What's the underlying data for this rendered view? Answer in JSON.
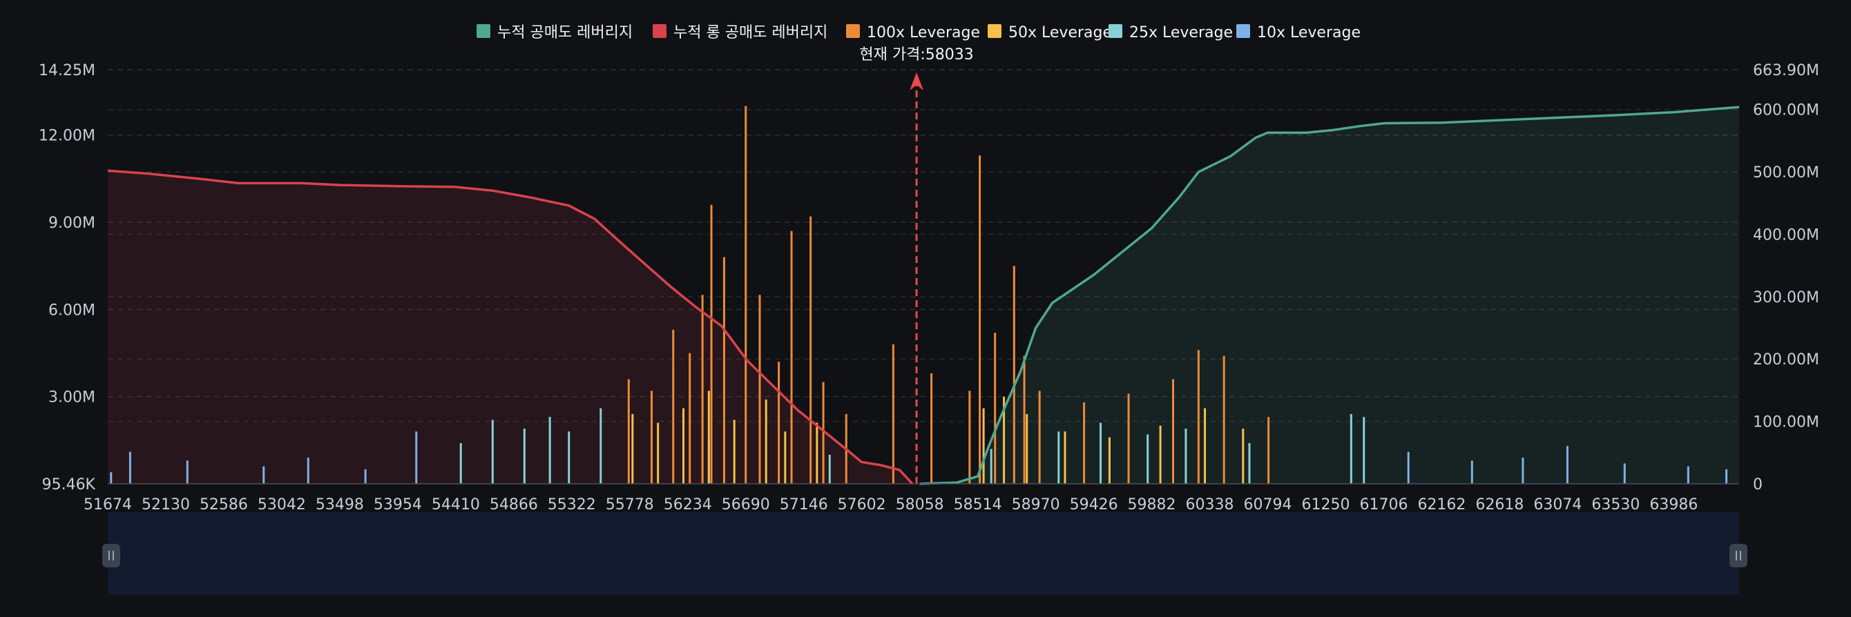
{
  "colors": {
    "background": "#0f1115",
    "grid": "#2b2f36",
    "axis_text": "#c9ced6",
    "cumulative_short": "#4fa88f",
    "cumulative_long": "#d9434d",
    "lev100": "#ee8a37",
    "lev50": "#f4c04b",
    "lev25": "#86d2d8",
    "lev10": "#7fb2e6",
    "marker": "#e64a4a",
    "zoom_bg": "#141b2e",
    "zoom_handle": "#3b4250"
  },
  "chart_data": {
    "type": "bar",
    "legend_position": "top-center",
    "grid": true,
    "series": [
      {
        "name": "누적 공매도 레버리지",
        "type": "area"
      },
      {
        "name": "누적 롱 공매도 레버리지",
        "type": "area"
      },
      {
        "name": "100x Leverage",
        "type": "bar"
      },
      {
        "name": "50x Leverage",
        "type": "bar"
      },
      {
        "name": "25x Leverage",
        "type": "bar"
      },
      {
        "name": "10x Leverage",
        "type": "bar"
      }
    ],
    "current_price_label": "현재 가격:58033",
    "current_price": 58033,
    "x_range": [
      51674,
      64500
    ],
    "x_tick_labels": [
      "51674",
      "52130",
      "52586",
      "53042",
      "53498",
      "53954",
      "54410",
      "54866",
      "55322",
      "55778",
      "56234",
      "56690",
      "57146",
      "57602",
      "58058",
      "58514",
      "58970",
      "59426",
      "59882",
      "60338",
      "60794",
      "61250",
      "61706",
      "62162",
      "62618",
      "63074",
      "63530",
      "63986"
    ],
    "y_left_range": [
      0,
      14.25
    ],
    "y_left_unit": "M",
    "y_left_ticks": [
      "95.46K",
      "3.00M",
      "6.00M",
      "9.00M",
      "12.00M",
      "14.25M"
    ],
    "y_left_tick_values": [
      0,
      3,
      6,
      9,
      12,
      14.25
    ],
    "y_right_range": [
      0,
      663.9
    ],
    "y_right_unit": "M",
    "y_right_ticks": [
      "0",
      "100.00M",
      "200.00M",
      "300.00M",
      "400.00M",
      "500.00M",
      "600.00M",
      "663.90M"
    ],
    "y_right_tick_values": [
      0,
      100,
      200,
      300,
      400,
      500,
      600,
      663.9
    ],
    "cumulative_long": [
      [
        51674,
        502
      ],
      [
        52000,
        497
      ],
      [
        52400,
        489
      ],
      [
        52700,
        482
      ],
      [
        53200,
        482
      ],
      [
        53500,
        479
      ],
      [
        54000,
        477
      ],
      [
        54400,
        476
      ],
      [
        54700,
        470
      ],
      [
        55000,
        459
      ],
      [
        55300,
        446
      ],
      [
        55500,
        425
      ],
      [
        55700,
        388
      ],
      [
        55900,
        352
      ],
      [
        56100,
        316
      ],
      [
        56300,
        283
      ],
      [
        56500,
        253
      ],
      [
        56700,
        198
      ],
      [
        56900,
        158
      ],
      [
        57100,
        118
      ],
      [
        57300,
        85
      ],
      [
        57500,
        52
      ],
      [
        57600,
        35
      ],
      [
        57750,
        30
      ],
      [
        57900,
        22
      ],
      [
        58000,
        0
      ]
    ],
    "cumulative_short": [
      [
        58058,
        0
      ],
      [
        58350,
        2
      ],
      [
        58514,
        12
      ],
      [
        58600,
        60
      ],
      [
        58700,
        110
      ],
      [
        58850,
        180
      ],
      [
        58970,
        250
      ],
      [
        59100,
        290
      ],
      [
        59426,
        335
      ],
      [
        59700,
        380
      ],
      [
        59882,
        410
      ],
      [
        60100,
        460
      ],
      [
        60250,
        500
      ],
      [
        60500,
        525
      ],
      [
        60700,
        555
      ],
      [
        60794,
        563
      ],
      [
        61100,
        563
      ],
      [
        61300,
        567
      ],
      [
        61500,
        573
      ],
      [
        61706,
        578
      ],
      [
        62162,
        579
      ],
      [
        62618,
        583
      ],
      [
        63074,
        587
      ],
      [
        63530,
        591
      ],
      [
        64000,
        596
      ],
      [
        64500,
        604
      ]
    ],
    "bars": {
      "lev100": [
        [
          55770,
          3.6
        ],
        [
          55950,
          3.2
        ],
        [
          56120,
          5.3
        ],
        [
          56250,
          4.5
        ],
        [
          56350,
          6.5
        ],
        [
          56420,
          9.6
        ],
        [
          56520,
          7.8
        ],
        [
          56690,
          13.0
        ],
        [
          56800,
          6.5
        ],
        [
          56950,
          4.2
        ],
        [
          57050,
          8.7
        ],
        [
          57200,
          9.2
        ],
        [
          57300,
          3.5
        ],
        [
          57480,
          2.4
        ],
        [
          57850,
          4.8
        ],
        [
          58150,
          3.8
        ],
        [
          58450,
          3.2
        ],
        [
          58530,
          11.3
        ],
        [
          58650,
          5.2
        ],
        [
          58800,
          7.5
        ],
        [
          58880,
          4.4
        ],
        [
          59000,
          3.2
        ],
        [
          59350,
          2.8
        ],
        [
          59700,
          3.1
        ],
        [
          60050,
          3.6
        ],
        [
          60250,
          4.6
        ],
        [
          60450,
          4.4
        ],
        [
          60800,
          2.3
        ]
      ],
      "lev50": [
        [
          55800,
          2.4
        ],
        [
          56000,
          2.1
        ],
        [
          56200,
          2.6
        ],
        [
          56400,
          3.2
        ],
        [
          56600,
          2.2
        ],
        [
          56850,
          2.9
        ],
        [
          57000,
          1.8
        ],
        [
          57250,
          2.1
        ],
        [
          58560,
          2.6
        ],
        [
          58720,
          3.0
        ],
        [
          58900,
          2.4
        ],
        [
          59200,
          1.8
        ],
        [
          59550,
          1.6
        ],
        [
          59950,
          2.0
        ],
        [
          60300,
          2.6
        ],
        [
          60600,
          1.9
        ]
      ],
      "lev25": [
        [
          54450,
          1.4
        ],
        [
          54700,
          2.2
        ],
        [
          54950,
          1.9
        ],
        [
          55150,
          2.3
        ],
        [
          55300,
          1.8
        ],
        [
          55550,
          2.6
        ],
        [
          56400,
          1.5
        ],
        [
          57350,
          1.0
        ],
        [
          58620,
          1.2
        ],
        [
          59150,
          1.8
        ],
        [
          59480,
          2.1
        ],
        [
          59850,
          1.7
        ],
        [
          60150,
          1.9
        ],
        [
          60650,
          1.4
        ],
        [
          61450,
          2.4
        ],
        [
          61550,
          2.3
        ]
      ],
      "lev10": [
        [
          51700,
          0.4
        ],
        [
          51850,
          1.1
        ],
        [
          52300,
          0.8
        ],
        [
          52900,
          0.6
        ],
        [
          53250,
          0.9
        ],
        [
          53700,
          0.5
        ],
        [
          54100,
          1.8
        ],
        [
          61900,
          1.1
        ],
        [
          62400,
          0.8
        ],
        [
          62800,
          0.9
        ],
        [
          63150,
          1.3
        ],
        [
          63600,
          0.7
        ],
        [
          64100,
          0.6
        ],
        [
          64400,
          0.5
        ]
      ]
    }
  }
}
